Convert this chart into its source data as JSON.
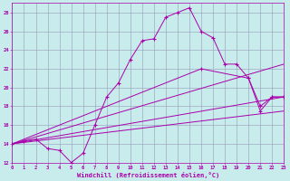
{
  "xlabel": "Windchill (Refroidissement éolien,°C)",
  "bg_color": "#c8ecec",
  "line_color": "#aa00aa",
  "grid_color": "#9999bb",
  "xlim": [
    0,
    23
  ],
  "ylim": [
    12,
    29
  ],
  "xticks": [
    0,
    1,
    2,
    3,
    4,
    5,
    6,
    7,
    8,
    9,
    10,
    11,
    12,
    13,
    14,
    15,
    16,
    17,
    18,
    19,
    20,
    21,
    22,
    23
  ],
  "yticks": [
    12,
    14,
    16,
    18,
    20,
    22,
    24,
    26,
    28
  ],
  "line1_x": [
    0,
    1,
    2,
    3,
    4,
    5,
    6,
    7,
    8,
    9,
    10,
    11,
    12,
    13,
    14,
    15,
    16,
    17,
    18,
    19,
    20,
    21,
    22,
    23
  ],
  "line1_y": [
    14,
    14.3,
    14.5,
    13.5,
    13.3,
    12,
    13,
    16,
    19,
    20.5,
    23,
    25,
    25.2,
    27.5,
    28,
    28.5,
    26,
    25.3,
    22.5,
    22.5,
    21,
    17.5,
    19,
    19
  ],
  "line2_x": [
    0,
    16,
    20,
    21,
    22,
    23
  ],
  "line2_y": [
    14,
    22,
    21,
    18,
    19,
    19
  ],
  "line3_x": [
    0,
    23
  ],
  "line3_y": [
    14,
    22.5
  ],
  "line4_x": [
    0,
    23
  ],
  "line4_y": [
    14,
    19
  ],
  "line5_x": [
    0,
    23
  ],
  "line5_y": [
    14,
    17.5
  ]
}
